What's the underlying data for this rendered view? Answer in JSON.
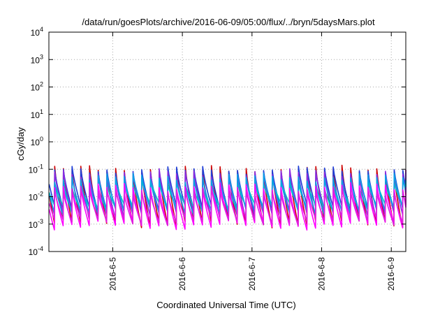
{
  "chart_data": {
    "type": "line",
    "title": "/data/run/goesPlots/archive/2016-06-09/05:00/flux/../bryn/5daysMars.plot",
    "xlabel": "Coordinated Universal Time (UTC)",
    "ylabel": "cGy/day",
    "yscale": "log",
    "ylim": [
      0.0001,
      10000
    ],
    "xlim": [
      "2016-06-04 02:00",
      "2016-06-09 05:00"
    ],
    "x_ticks": [
      "2016-6-5",
      "2016-6-6",
      "2016-6-7",
      "2016-6-8",
      "2016-6-9"
    ],
    "y_ticks": [
      {
        "base": "10",
        "exp": "-4"
      },
      {
        "base": "10",
        "exp": "-3"
      },
      {
        "base": "10",
        "exp": "-2"
      },
      {
        "base": "10",
        "exp": "-1"
      },
      {
        "base": "10",
        "exp": "0"
      },
      {
        "base": "10",
        "exp": "1"
      },
      {
        "base": "10",
        "exp": "2"
      },
      {
        "base": "10",
        "exp": "3"
      },
      {
        "base": "10",
        "exp": "4"
      }
    ],
    "grid": true,
    "legend": "none",
    "pattern": {
      "cycle_hours": 3,
      "start_phase_hours": -1
    },
    "series": [
      {
        "color": "#cc0000",
        "peak": 0.095,
        "trough": 0.0011
      },
      {
        "color": "#1f3fd6",
        "peak": 0.09,
        "trough": 0.0035
      },
      {
        "color": "#8a2be2",
        "peak": 0.07,
        "trough": 0.0022
      },
      {
        "color": "#00c8c8",
        "peak": 0.03,
        "trough": 0.0042
      },
      {
        "color": "#0aa0e6",
        "peak": 0.05,
        "trough": 0.003
      },
      {
        "color": "#ff00ff",
        "peak": 0.022,
        "trough": 0.0009
      },
      {
        "color": "#e020e0",
        "peak": 0.016,
        "trough": 0.0013
      }
    ]
  }
}
